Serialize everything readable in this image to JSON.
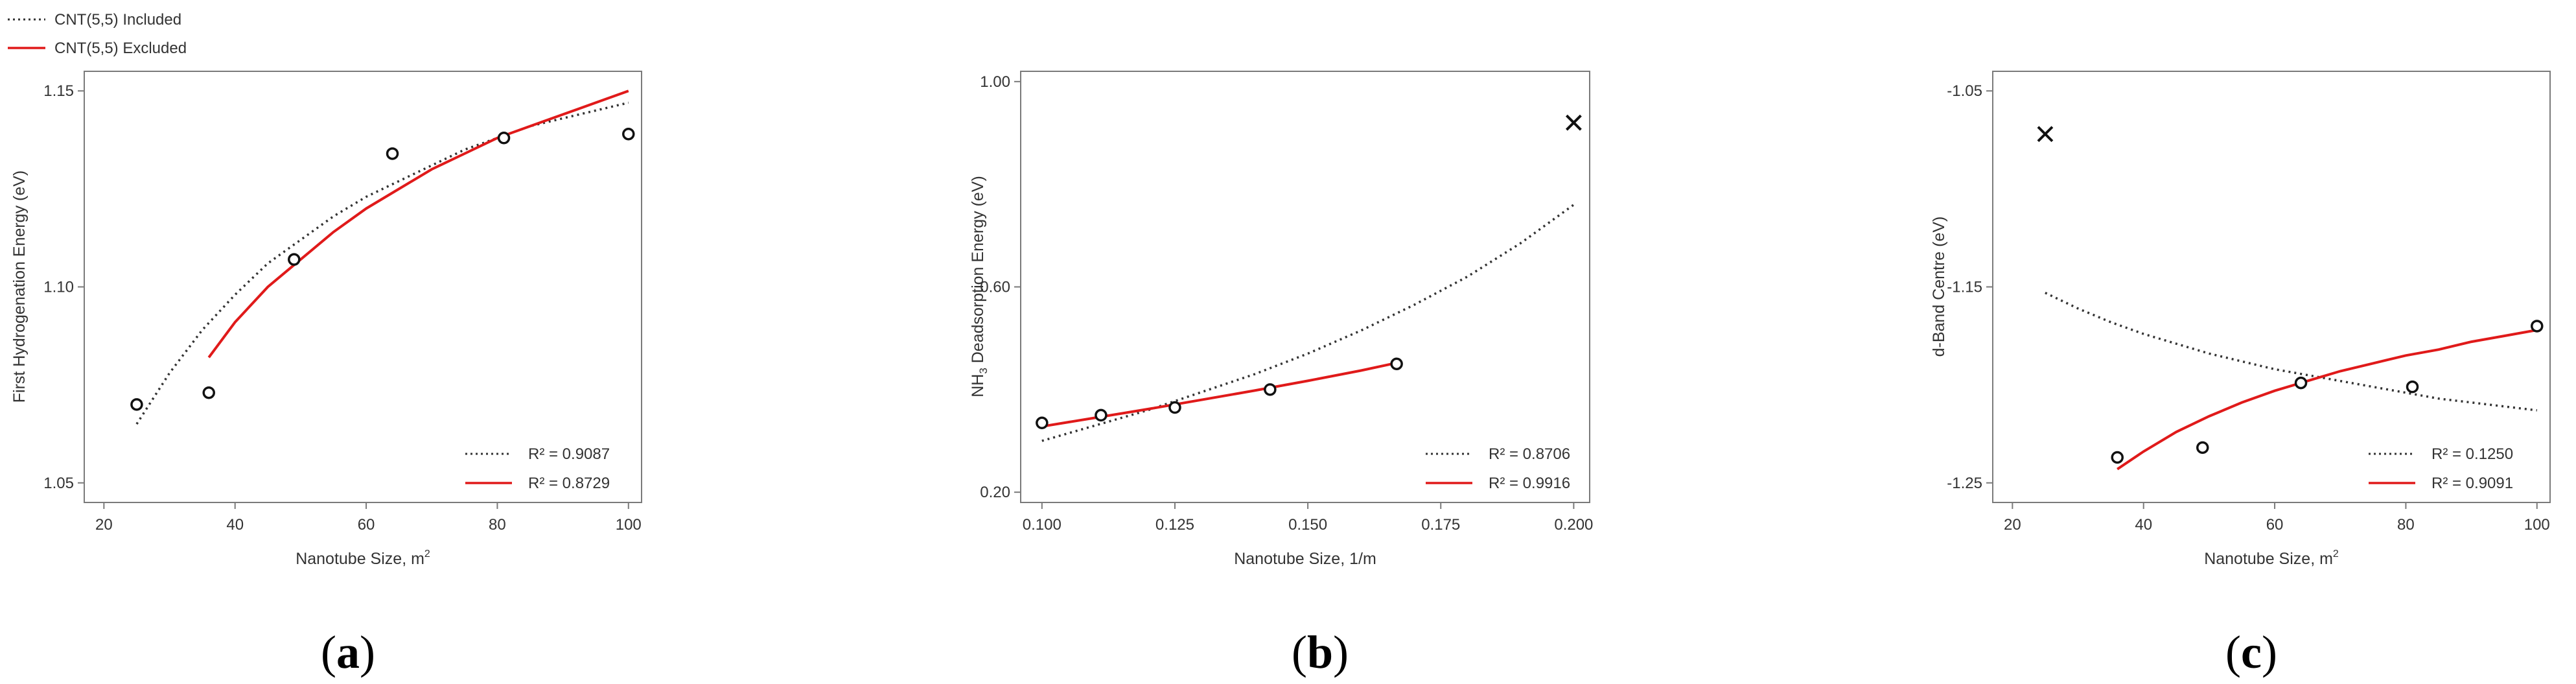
{
  "legend": {
    "included": "CNT(5,5) Included",
    "excluded": "CNT(5,5) Excluded",
    "included_color": "#333333",
    "excluded_color": "#e01a1a"
  },
  "chart_data": [
    {
      "type": "scatter",
      "panel": "a",
      "panel_label_open": "(",
      "panel_label_letter": "a",
      "panel_label_close": ")",
      "xlabel": "Nanotube Size, m",
      "xlabel_sup": "2",
      "ylabel": "First Hydrogenation Energy (eV)",
      "xlim": [
        17,
        102
      ],
      "ylim": [
        1.045,
        1.155
      ],
      "xticks": [
        20,
        40,
        60,
        80,
        100
      ],
      "xtick_labels": [
        "20",
        "40",
        "60",
        "80",
        "100"
      ],
      "yticks": [
        1.05,
        1.1,
        1.15
      ],
      "ytick_labels": [
        "1.05",
        "1.10",
        "1.15"
      ],
      "points": [
        {
          "x": 25,
          "y": 1.07,
          "marker": "circle"
        },
        {
          "x": 36,
          "y": 1.073,
          "marker": "circle"
        },
        {
          "x": 49,
          "y": 1.107,
          "marker": "circle"
        },
        {
          "x": 64,
          "y": 1.134,
          "marker": "circle"
        },
        {
          "x": 81,
          "y": 1.138,
          "marker": "circle"
        },
        {
          "x": 100,
          "y": 1.139,
          "marker": "circle"
        }
      ],
      "series": [
        {
          "name": "included",
          "style": "dotted",
          "color": "#333333",
          "x": [
            25,
            30,
            35,
            40,
            45,
            50,
            55,
            60,
            65,
            70,
            75,
            80,
            85,
            90,
            95,
            100
          ],
          "y": [
            1.065,
            1.078,
            1.089,
            1.098,
            1.106,
            1.112,
            1.118,
            1.123,
            1.127,
            1.131,
            1.135,
            1.138,
            1.141,
            1.143,
            1.145,
            1.147
          ],
          "r2": "R² = 0.9087"
        },
        {
          "name": "excluded",
          "style": "solid",
          "color": "#e01a1a",
          "x": [
            36,
            40,
            45,
            50,
            55,
            60,
            65,
            70,
            75,
            80,
            85,
            90,
            95,
            100
          ],
          "y": [
            1.082,
            1.091,
            1.1,
            1.107,
            1.114,
            1.12,
            1.125,
            1.13,
            1.134,
            1.138,
            1.141,
            1.144,
            1.147,
            1.15
          ],
          "r2": "R² = 0.8729"
        }
      ],
      "legend_r2": [
        "R² = 0.9087",
        "R² = 0.8729"
      ]
    },
    {
      "type": "scatter",
      "panel": "b",
      "panel_label_open": "(",
      "panel_label_letter": "b",
      "panel_label_close": ")",
      "xlabel": "Nanotube Size, 1/m",
      "xlabel_sup": "",
      "ylabel": "NH₃ Deadsorption Energy (eV)",
      "xlim": [
        0.096,
        0.203
      ],
      "ylim": [
        0.18,
        1.02
      ],
      "xticks": [
        0.1,
        0.125,
        0.15,
        0.175,
        0.2
      ],
      "xtick_labels": [
        "0.100",
        "0.125",
        "0.150",
        "0.175",
        "0.200"
      ],
      "yticks": [
        0.2,
        0.6,
        1.0
      ],
      "ytick_labels": [
        "0.20",
        "0.60",
        "1.00"
      ],
      "points": [
        {
          "x": 0.1,
          "y": 0.335,
          "marker": "circle"
        },
        {
          "x": 0.1111,
          "y": 0.35,
          "marker": "circle"
        },
        {
          "x": 0.125,
          "y": 0.365,
          "marker": "circle"
        },
        {
          "x": 0.1429,
          "y": 0.4,
          "marker": "circle"
        },
        {
          "x": 0.1667,
          "y": 0.45,
          "marker": "circle"
        },
        {
          "x": 0.2,
          "y": 0.92,
          "marker": "cross"
        }
      ],
      "series": [
        {
          "name": "included",
          "style": "dotted",
          "color": "#333333",
          "x": [
            0.1,
            0.11,
            0.12,
            0.13,
            0.14,
            0.15,
            0.16,
            0.17,
            0.18,
            0.19,
            0.2
          ],
          "y": [
            0.3,
            0.33,
            0.36,
            0.395,
            0.43,
            0.47,
            0.515,
            0.565,
            0.62,
            0.685,
            0.76
          ],
          "r2": "R² = 0.8706"
        },
        {
          "name": "excluded",
          "style": "solid",
          "color": "#e01a1a",
          "x": [
            0.1,
            0.11,
            0.12,
            0.13,
            0.14,
            0.15,
            0.16,
            0.1667
          ],
          "y": [
            0.328,
            0.345,
            0.362,
            0.38,
            0.398,
            0.417,
            0.437,
            0.452
          ],
          "r2": "R² = 0.9916"
        }
      ],
      "legend_r2": [
        "R² = 0.8706",
        "R² = 0.9916"
      ]
    },
    {
      "type": "scatter",
      "panel": "c",
      "panel_label_open": "(",
      "panel_label_letter": "c",
      "panel_label_close": ")",
      "xlabel": "Nanotube Size, m",
      "xlabel_sup": "2",
      "ylabel": "d-Band Centre (eV)",
      "xlim": [
        17,
        102
      ],
      "ylim": [
        -1.26,
        -1.04
      ],
      "xticks": [
        20,
        40,
        60,
        80,
        100
      ],
      "xtick_labels": [
        "20",
        "40",
        "60",
        "80",
        "100"
      ],
      "yticks": [
        -1.25,
        -1.15,
        -1.05
      ],
      "ytick_labels": [
        "-1.25",
        "-1.15",
        "-1.05"
      ],
      "points": [
        {
          "x": 25,
          "y": -1.072,
          "marker": "cross"
        },
        {
          "x": 36,
          "y": -1.237,
          "marker": "circle"
        },
        {
          "x": 49,
          "y": -1.232,
          "marker": "circle"
        },
        {
          "x": 64,
          "y": -1.199,
          "marker": "circle"
        },
        {
          "x": 81,
          "y": -1.201,
          "marker": "circle"
        },
        {
          "x": 100,
          "y": -1.17,
          "marker": "circle"
        }
      ],
      "series": [
        {
          "name": "included",
          "style": "dotted",
          "color": "#333333",
          "x": [
            25,
            30,
            35,
            40,
            45,
            50,
            55,
            60,
            65,
            70,
            75,
            80,
            85,
            90,
            95,
            100
          ],
          "y": [
            -1.153,
            -1.161,
            -1.168,
            -1.174,
            -1.179,
            -1.184,
            -1.188,
            -1.192,
            -1.195,
            -1.198,
            -1.201,
            -1.204,
            -1.207,
            -1.209,
            -1.211,
            -1.213
          ],
          "r2": "R² = 0.1250"
        },
        {
          "name": "excluded",
          "style": "solid",
          "color": "#e01a1a",
          "x": [
            36,
            40,
            45,
            50,
            55,
            60,
            65,
            70,
            75,
            80,
            85,
            90,
            95,
            100
          ],
          "y": [
            -1.243,
            -1.234,
            -1.224,
            -1.216,
            -1.209,
            -1.203,
            -1.198,
            -1.193,
            -1.189,
            -1.185,
            -1.182,
            -1.178,
            -1.175,
            -1.172
          ],
          "r2": "R² = 0.9091"
        }
      ],
      "legend_r2": [
        "R² = 0.1250",
        "R² = 0.9091"
      ]
    }
  ]
}
